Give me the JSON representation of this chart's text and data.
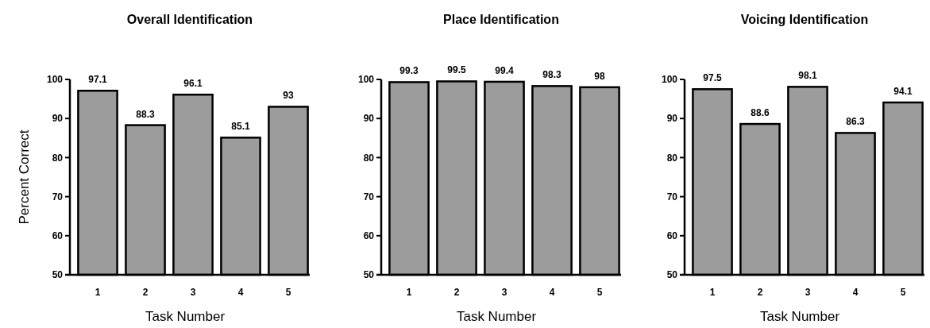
{
  "chart_data": [
    {
      "type": "bar",
      "title": "Overall Identification",
      "xlabel": "Task Number",
      "ylabel": "Percent Correct",
      "categories": [
        "1",
        "2",
        "3",
        "4",
        "5"
      ],
      "values": [
        97.1,
        88.3,
        96.1,
        85.1,
        93
      ],
      "color": "#9c9c9c",
      "ylim": [
        50,
        100
      ],
      "yticks": [
        50,
        60,
        70,
        80,
        90,
        100
      ],
      "data_labels": true
    },
    {
      "type": "bar",
      "title": "Place Identification",
      "xlabel": "Task Number",
      "categories": [
        "1",
        "2",
        "3",
        "4",
        "5"
      ],
      "values": [
        99.3,
        99.5,
        99.4,
        98.3,
        98
      ],
      "color": "#9c9c9c",
      "ylim": [
        50,
        100
      ],
      "yticks": [
        50,
        60,
        70,
        80,
        90,
        100
      ],
      "data_labels": true
    },
    {
      "type": "bar",
      "title": "Voicing Identification",
      "xlabel": "Task Number",
      "categories": [
        "1",
        "2",
        "3",
        "4",
        "5"
      ],
      "values": [
        97.5,
        88.6,
        98.1,
        86.3,
        94.1
      ],
      "color": "#9c9c9c",
      "ylim": [
        50,
        100
      ],
      "yticks": [
        50,
        60,
        70,
        80,
        90,
        100
      ],
      "data_labels": true
    }
  ]
}
